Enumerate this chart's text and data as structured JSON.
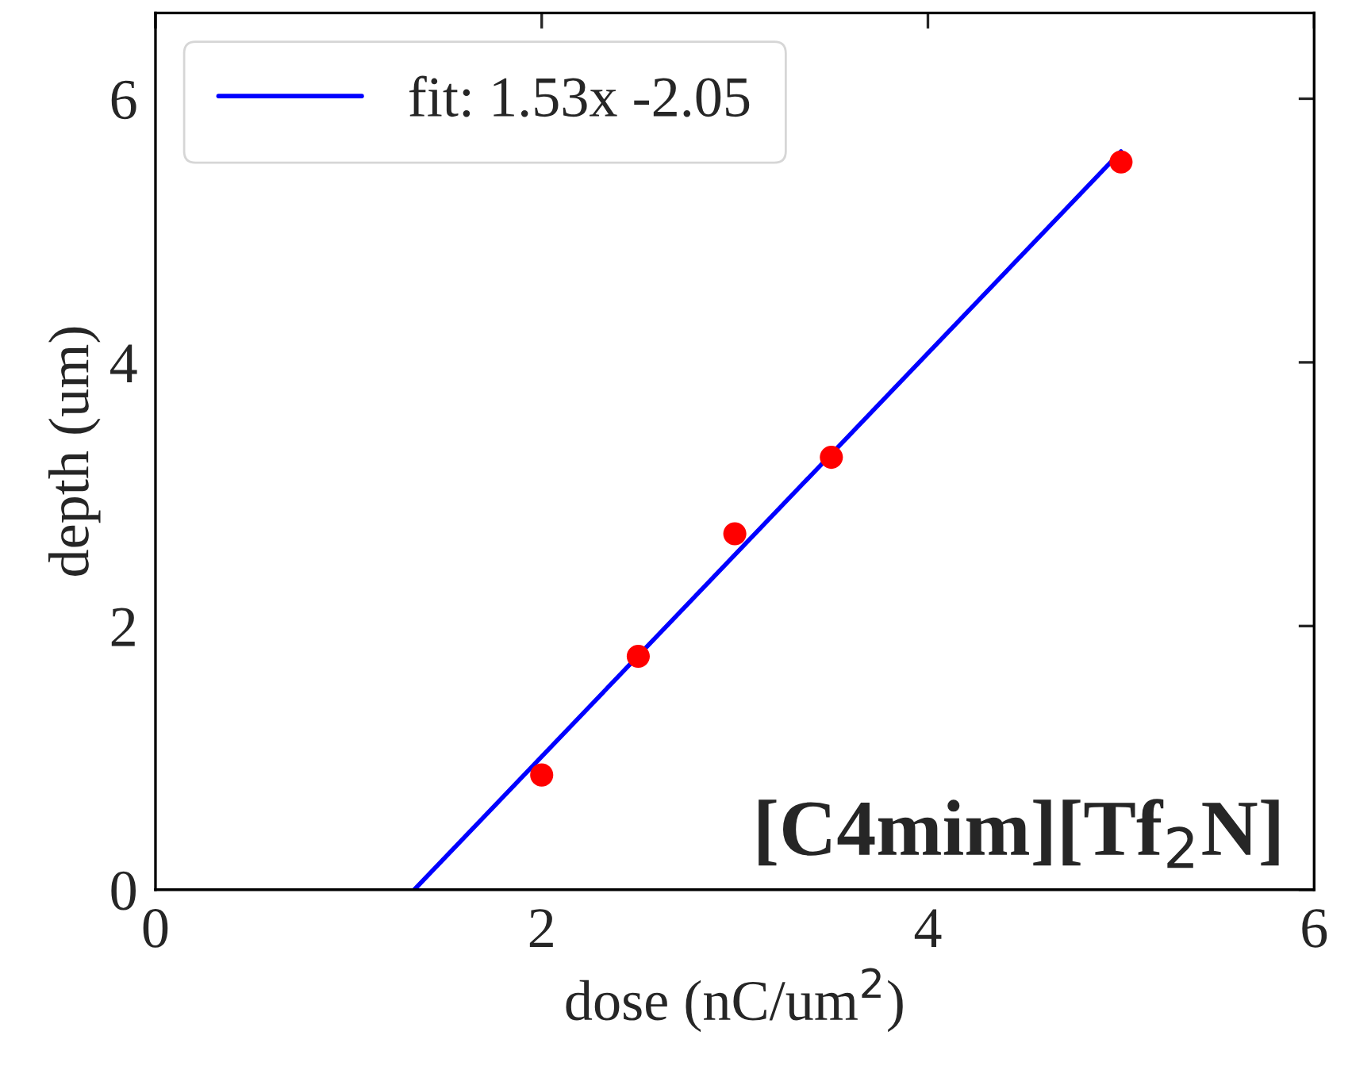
{
  "chart_data": {
    "type": "scatter",
    "xlabel": "dose (nC/um$^{2}$)",
    "ylabel": "depth (um)",
    "xlim": [
      0,
      6
    ],
    "ylim": [
      0,
      6.65
    ],
    "xticks": [
      0,
      2,
      4,
      6
    ],
    "yticks": [
      0,
      2,
      4,
      6
    ],
    "x": [
      2,
      2.5,
      3,
      3.5,
      5
    ],
    "series": [
      {
        "color": "#ff0000",
        "values": [
          0.87,
          1.77,
          2.7,
          3.28,
          5.52
        ],
        "marker": "circle"
      },
      {
        "type": "line",
        "name": "fit: 1.53x -2.05",
        "color": "#0000ff",
        "x": [
          1.34,
          5.0
        ],
        "values": [
          0,
          5.6
        ],
        "line_style": "solid"
      }
    ],
    "annotations": [
      "[C4mim][Tf$_{2}$N]"
    ],
    "legend": "top left",
    "grid": false
  }
}
